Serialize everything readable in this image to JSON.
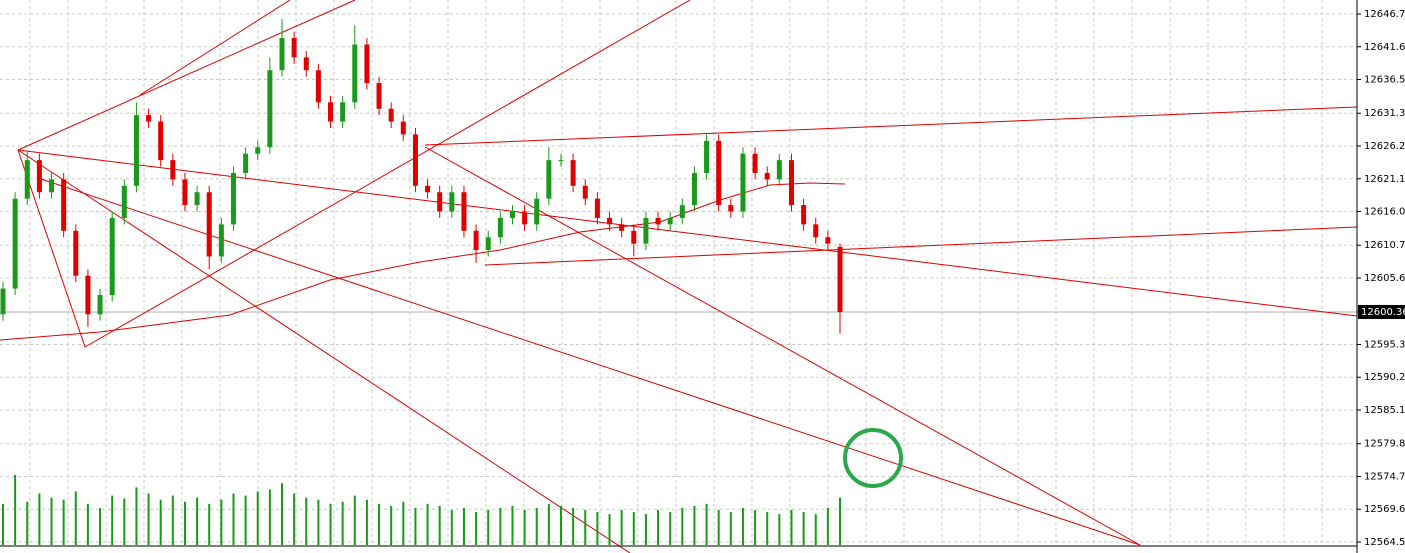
{
  "chart_data": {
    "type": "candlestick",
    "open": [
      12600,
      12604,
      12618,
      12624,
      12619,
      12621,
      12613,
      12606,
      12600,
      12603,
      12615,
      12620,
      12631,
      12630,
      12624,
      12621,
      12617,
      12619,
      12609,
      12614,
      12622,
      12625,
      12626,
      12638,
      12643,
      12640,
      12638,
      12633,
      12630,
      12633,
      12642,
      12636,
      12632,
      12630,
      12628,
      12620,
      12619,
      12616,
      12619,
      12613,
      12610,
      12612,
      12615,
      12616,
      12614,
      12618,
      12624,
      12624,
      12620,
      12618,
      12615,
      12614,
      12613,
      12611,
      12615,
      12614,
      12615,
      12617,
      12622,
      12627,
      12617,
      12616,
      12625,
      12622,
      12621,
      12624,
      12617,
      12614,
      12612,
      12610.5
    ],
    "high": [
      12605,
      12619,
      12625.5,
      12625,
      12622,
      12622,
      12614,
      12607,
      12604,
      12616,
      12621,
      12633,
      12632,
      12631,
      12625,
      12622,
      12620,
      12620,
      12615,
      12623,
      12626,
      12627,
      12640,
      12646,
      12644,
      12641,
      12639,
      12634,
      12634,
      12645,
      12643,
      12637,
      12633,
      12631,
      12629,
      12621,
      12620,
      12620,
      12620,
      12614,
      12613,
      12616,
      12617,
      12617,
      12619,
      12626,
      12625,
      12625,
      12621,
      12619,
      12616,
      12615,
      12614,
      12616,
      12616,
      12616,
      12618,
      12623,
      12628,
      12628,
      12618,
      12626,
      12626,
      12623,
      12625,
      12625,
      12618,
      12615,
      12613,
      12611
    ],
    "low": [
      12599,
      12603,
      12617,
      12618,
      12618,
      12612,
      12605,
      12598,
      12599,
      12602,
      12614,
      12619,
      12629,
      12623,
      12620,
      12616,
      12616,
      12607,
      12608,
      12613,
      12621,
      12624,
      12625,
      12637,
      12639,
      12637,
      12632,
      12629,
      12629,
      12632,
      12635,
      12631,
      12629,
      12627,
      12619,
      12618,
      12615,
      12615,
      12612,
      12608,
      12609,
      12611,
      12614,
      12613,
      12613,
      12617,
      12623,
      12619,
      12617,
      12614,
      12613,
      12612,
      12609,
      12610,
      12613,
      12613,
      12614,
      12616,
      12621,
      12616,
      12615,
      12615,
      12621,
      12620,
      12620,
      12616,
      12613,
      12611,
      12610,
      12597
    ],
    "close": [
      12604,
      12618,
      12624,
      12619,
      12621,
      12613,
      12606,
      12600,
      12603,
      12615,
      12620,
      12631,
      12630,
      12624,
      12621,
      12617,
      12619,
      12609,
      12614,
      12622,
      12625,
      12626,
      12638,
      12643,
      12640,
      12638,
      12633,
      12630,
      12633,
      12642,
      12636,
      12632,
      12630,
      12628,
      12620,
      12619,
      12616,
      12619,
      12613,
      12610,
      12612,
      12615,
      12616,
      12614,
      12618,
      12624,
      12624,
      12620,
      12618,
      12615,
      12614,
      12613,
      12611,
      12615,
      12614,
      12615,
      12617,
      12622,
      12627,
      12617,
      12616,
      12625,
      12622,
      12621,
      12624,
      12617,
      12614,
      12612,
      12611,
      12600.36
    ],
    "volume": [
      40,
      68,
      42,
      50,
      46,
      44,
      52,
      40,
      36,
      48,
      45,
      56,
      50,
      44,
      48,
      42,
      46,
      40,
      44,
      50,
      48,
      52,
      54,
      60,
      50,
      46,
      44,
      40,
      42,
      48,
      44,
      40,
      38,
      42,
      36,
      40,
      38,
      34,
      36,
      32,
      34,
      36,
      38,
      34,
      36,
      40,
      38,
      36,
      34,
      32,
      30,
      34,
      32,
      30,
      34,
      32,
      36,
      38,
      40,
      34,
      32,
      36,
      34,
      32,
      30,
      34,
      32,
      30,
      36,
      46
    ],
    "up_color": "#1a9a1a",
    "down_color": "#e00000",
    "volume_color": "#1a9a1a",
    "ylim": [
      12564.55,
      12646.75
    ],
    "yticks": [
      12646.75,
      12641.65,
      12636.55,
      {
        "value": 12631.3,
        "label": "12631.30"
      },
      {
        "value": 12626.2,
        "label": "12626.20"
      },
      {
        "value": 12621.1,
        "label": "12621.10"
      },
      {
        "value": 12616,
        "label": "12616.00"
      },
      12610.75,
      12605.65,
      12600.36,
      {
        "value": 12595.3,
        "label": "12595.30"
      },
      {
        "value": 12590.2,
        "label": "12590.20"
      },
      {
        "value": 12585.1,
        "label": "12585.10"
      },
      12579.85,
      12574.75,
      12569.65,
      12564.55
    ],
    "last_price": 12600.36,
    "grid": true
  }
}
